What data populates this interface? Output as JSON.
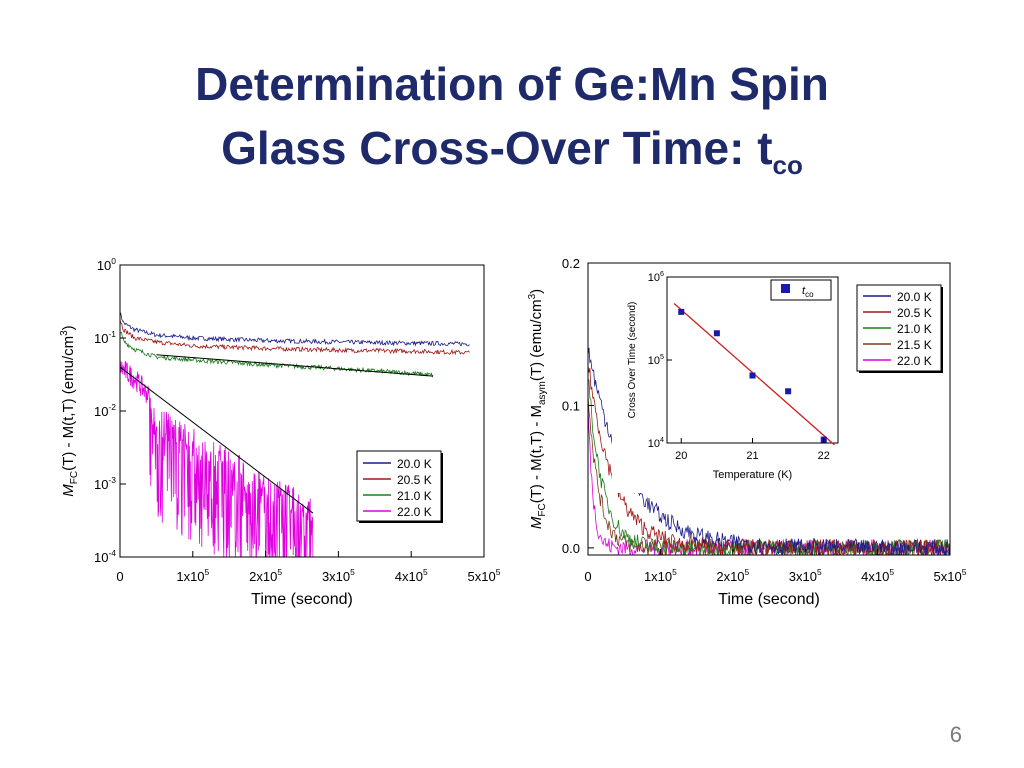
{
  "slide": {
    "title_line1": "Determination of Ge:Mn Spin",
    "title_line2": "Glass Cross-Over Time: t",
    "title_sub": "co",
    "page_number": "6",
    "title_color": "#1f2a6b"
  },
  "chart_data": [
    {
      "type": "line",
      "id": "left",
      "xlabel": "Time (second)",
      "ylabel": "M_FC(T) - M(t,T) (emu/cm^3)",
      "xlim": [
        0,
        500000
      ],
      "ylim": [
        0.0001,
        1
      ],
      "yscale": "log",
      "xticks": [
        "0",
        "1x10^5",
        "2x10^5",
        "3x10^5",
        "4x10^5",
        "5x10^5"
      ],
      "yticks": [
        "10^-4",
        "10^-3",
        "10^-2",
        "10^-1",
        "10^0"
      ],
      "legend_position": "bottom-right",
      "series": [
        {
          "name": "20.0 K",
          "color": "#1c1c8a",
          "x": [
            0,
            5000,
            20000,
            50000,
            100000,
            200000,
            300000,
            400000,
            480000
          ],
          "y": [
            0.22,
            0.16,
            0.13,
            0.11,
            0.1,
            0.092,
            0.088,
            0.085,
            0.083
          ]
        },
        {
          "name": "20.5 K",
          "color": "#a01818",
          "x": [
            0,
            5000,
            20000,
            50000,
            100000,
            200000,
            300000,
            400000,
            480000
          ],
          "y": [
            0.18,
            0.13,
            0.1,
            0.088,
            0.078,
            0.072,
            0.068,
            0.066,
            0.063
          ]
        },
        {
          "name": "21.0 K",
          "color": "#1e7d1e",
          "x": [
            0,
            5000,
            20000,
            50000,
            100000,
            200000,
            300000,
            400000,
            430000
          ],
          "y": [
            0.13,
            0.09,
            0.07,
            0.055,
            0.05,
            0.043,
            0.038,
            0.033,
            0.031
          ]
        },
        {
          "name": "22.0 K",
          "color": "#e000e0",
          "x": [
            0,
            20000,
            50000,
            100000,
            150000,
            200000,
            250000,
            265000
          ],
          "y": [
            0.04,
            0.028,
            0.012,
            0.006,
            0.003,
            0.0015,
            0.0008,
            0.0006
          ]
        }
      ],
      "fit_lines": [
        {
          "x": [
            50000,
            430000
          ],
          "y": [
            0.059,
            0.03
          ]
        },
        {
          "x": [
            0,
            265000
          ],
          "y": [
            0.04,
            0.0004
          ]
        }
      ]
    },
    {
      "type": "line",
      "id": "right",
      "xlabel": "Time (second)",
      "ylabel": "M_FC(T) - M(t,T) - M_asym(T) (emu/cm^3)",
      "xlim": [
        0,
        500000
      ],
      "ylim": [
        -0.005,
        0.2
      ],
      "xticks": [
        "0",
        "1x10^5",
        "2x10^5",
        "3x10^5",
        "4x10^5",
        "5x10^5"
      ],
      "yticks": [
        "0.0",
        "0.1",
        "0.2"
      ],
      "legend_position": "right",
      "series": [
        {
          "name": "20.0 K",
          "color": "#1c1c8a",
          "tau": 55000,
          "amp": 0.14
        },
        {
          "name": "20.5 K",
          "color": "#a01818",
          "tau": 35000,
          "amp": 0.13
        },
        {
          "name": "21.0 K",
          "color": "#1e7d1e",
          "tau": 20000,
          "amp": 0.12
        },
        {
          "name": "21.5 K",
          "color": "#7a3a1a",
          "tau": 15000,
          "amp": 0.11
        },
        {
          "name": "22.0 K",
          "color": "#e000e0",
          "tau": 7000,
          "amp": 0.1
        }
      ]
    },
    {
      "type": "scatter",
      "id": "inset",
      "xlabel": "Temperature (K)",
      "ylabel": "Cross Over Time (second)",
      "yscale": "log",
      "xlim": [
        19.8,
        22.2
      ],
      "ylim": [
        10000,
        1000000
      ],
      "xticks": [
        "20",
        "21",
        "22"
      ],
      "yticks": [
        "10^4",
        "10^5",
        "10^6"
      ],
      "legend": "t_co",
      "point_color": "#1a1aa8",
      "fit_color": "#cc2020",
      "points": {
        "x": [
          20.0,
          20.5,
          21.0,
          21.5,
          22.0
        ],
        "y": [
          380000,
          210000,
          65000,
          42000,
          11000
        ]
      },
      "fit": {
        "x": [
          19.9,
          22.15
        ],
        "y": [
          480000,
          9500
        ]
      }
    }
  ]
}
